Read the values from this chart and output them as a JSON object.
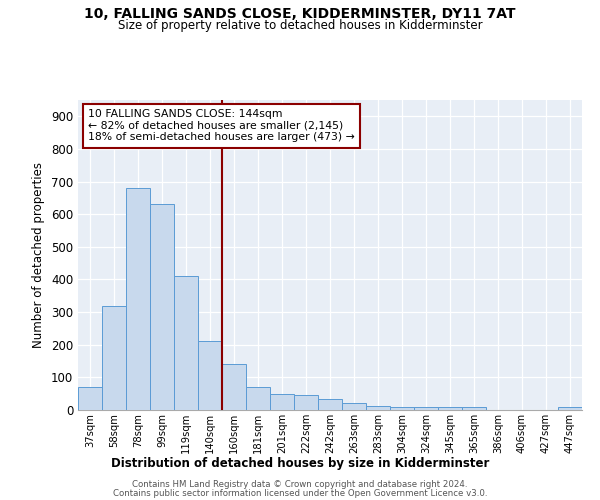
{
  "title": "10, FALLING SANDS CLOSE, KIDDERMINSTER, DY11 7AT",
  "subtitle": "Size of property relative to detached houses in Kidderminster",
  "xlabel": "Distribution of detached houses by size in Kidderminster",
  "ylabel": "Number of detached properties",
  "bar_color": "#c8d9ed",
  "bar_edge_color": "#5b9bd5",
  "categories": [
    "37sqm",
    "58sqm",
    "78sqm",
    "99sqm",
    "119sqm",
    "140sqm",
    "160sqm",
    "181sqm",
    "201sqm",
    "222sqm",
    "242sqm",
    "263sqm",
    "283sqm",
    "304sqm",
    "324sqm",
    "345sqm",
    "365sqm",
    "386sqm",
    "406sqm",
    "427sqm",
    "447sqm"
  ],
  "values": [
    70,
    320,
    680,
    630,
    410,
    210,
    140,
    70,
    50,
    45,
    35,
    20,
    12,
    10,
    8,
    8,
    8,
    0,
    0,
    0,
    8
  ],
  "vline_x": 5.5,
  "vline_color": "#8b0000",
  "annotation_text": "10 FALLING SANDS CLOSE: 144sqm\n← 82% of detached houses are smaller (2,145)\n18% of semi-detached houses are larger (473) →",
  "annotation_box_color": "white",
  "annotation_box_edge": "#8b0000",
  "ylim": [
    0,
    950
  ],
  "yticks": [
    0,
    100,
    200,
    300,
    400,
    500,
    600,
    700,
    800,
    900
  ],
  "bg_color": "#e8eef6",
  "footer1": "Contains HM Land Registry data © Crown copyright and database right 2024.",
  "footer2": "Contains public sector information licensed under the Open Government Licence v3.0."
}
